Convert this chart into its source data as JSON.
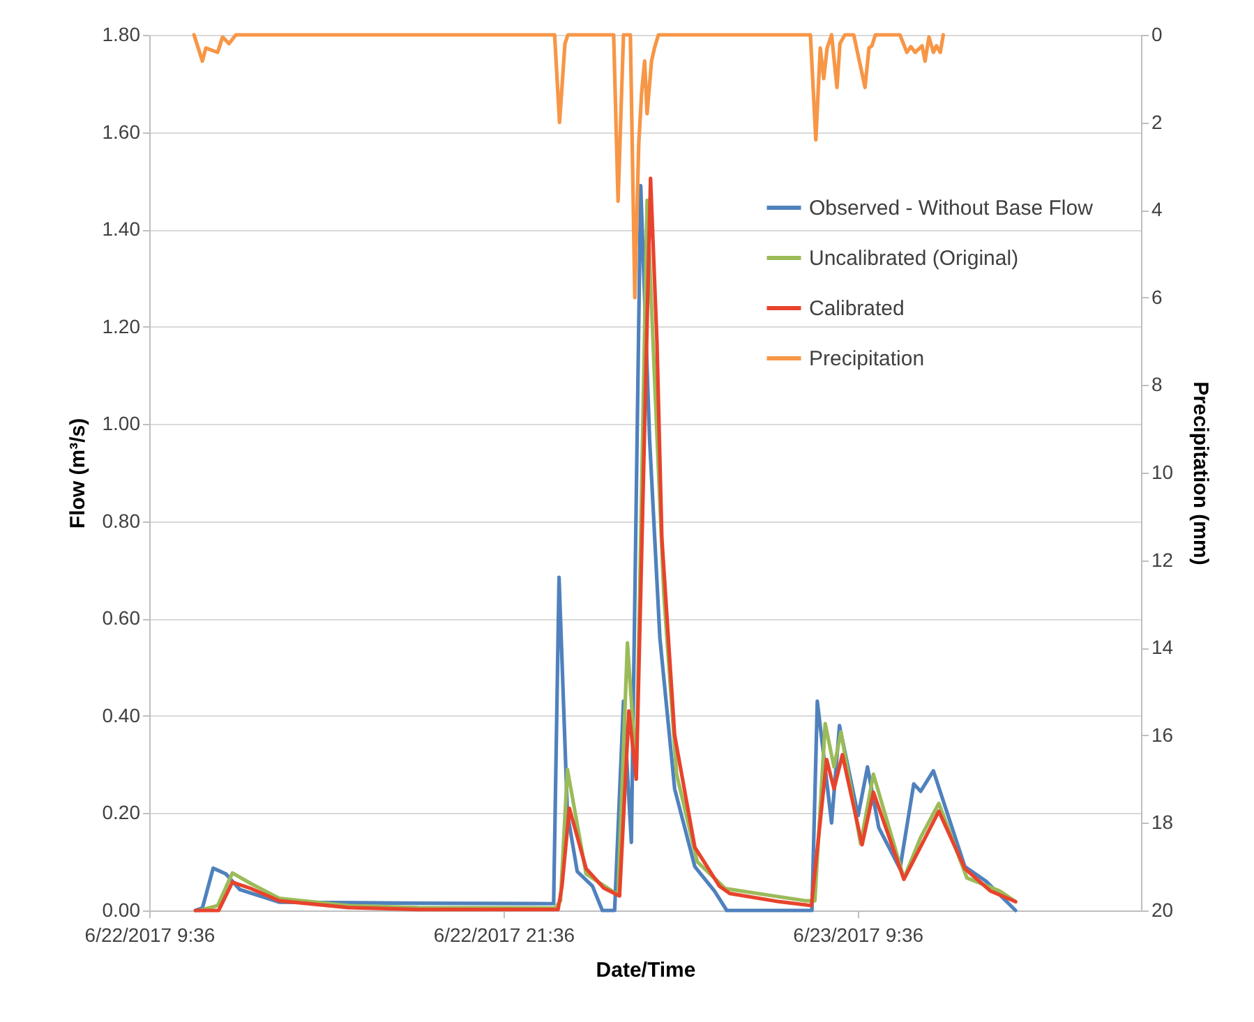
{
  "chart_data": {
    "type": "line",
    "xlabel": "Date/Time",
    "ylabel": "Flow (m³/s)",
    "y2label": "Precipitation (mm)",
    "xlim": [
      "2017-06-22T09:36",
      "2017-06-23T19:12"
    ],
    "xticks": [
      {
        "value": "2017-06-22T09:36",
        "label": "6/22/2017 9:36"
      },
      {
        "value": "2017-06-22T21:36",
        "label": "6/22/2017 21:36"
      },
      {
        "value": "2017-06-23T09:36",
        "label": "6/23/2017 9:36"
      }
    ],
    "ylim": [
      0,
      1.8
    ],
    "yticks": [
      {
        "value": 0,
        "label": "0.00"
      },
      {
        "value": 0.2,
        "label": "0.20"
      },
      {
        "value": 0.4,
        "label": "0.40"
      },
      {
        "value": 0.6,
        "label": "0.60"
      },
      {
        "value": 0.8,
        "label": "0.80"
      },
      {
        "value": 1,
        "label": "1.00"
      },
      {
        "value": 1.2,
        "label": "1.20"
      },
      {
        "value": 1.4,
        "label": "1.40"
      },
      {
        "value": 1.6,
        "label": "1.60"
      },
      {
        "value": 1.8,
        "label": "1.80"
      }
    ],
    "y2lim": [
      20,
      0
    ],
    "y2ticks": [
      0,
      2,
      4,
      6,
      8,
      10,
      12,
      14,
      16,
      18,
      20
    ],
    "grid": "y",
    "legend": "top right",
    "series": [
      {
        "name": "Observed - Without Base Flow",
        "color": "#4f81bd",
        "x": [
          "2017-06-22T11:10",
          "2017-06-22T11:24",
          "2017-06-22T11:46",
          "2017-06-22T12:12",
          "2017-06-22T12:40",
          "2017-06-22T14:00",
          "2017-06-22T18:43",
          "2017-06-22T23:07",
          "2017-06-22T23:18",
          "2017-06-22T23:29",
          "2017-06-22T23:46",
          "2017-06-23T00:06",
          "2017-06-23T00:37",
          "2017-06-23T00:57",
          "2017-06-23T01:22",
          "2017-06-23T01:40",
          "2017-06-23T01:56",
          "2017-06-23T02:15",
          "2017-06-23T02:33",
          "2017-06-23T02:54",
          "2017-06-23T03:24",
          "2017-06-23T04:05",
          "2017-06-23T04:45",
          "2017-06-23T05:10",
          "2017-06-23T07:29",
          "2017-06-23T08:03",
          "2017-06-23T08:14",
          "2017-06-23T08:43",
          "2017-06-23T08:59",
          "2017-06-23T09:37",
          "2017-06-23T09:56",
          "2017-06-23T10:19",
          "2017-06-23T11:02",
          "2017-06-23T11:30",
          "2017-06-23T11:44",
          "2017-06-23T12:10",
          "2017-06-23T12:35",
          "2017-06-23T13:14",
          "2017-06-23T13:57",
          "2017-06-23T14:57"
        ],
        "values": [
          0,
          0.005,
          0.087,
          0.075,
          0.043,
          0.017,
          0.015,
          0.014,
          0.014,
          0.685,
          0.2,
          0.08,
          0.05,
          0,
          0,
          0.43,
          0.14,
          1.49,
          0.97,
          0.56,
          0.25,
          0.09,
          0.04,
          0,
          0,
          0,
          0.43,
          0.18,
          0.38,
          0.195,
          0.295,
          0.17,
          0.086,
          0.26,
          0.245,
          0.287,
          0.21,
          0.09,
          0.06,
          0
        ]
      },
      {
        "name": "Uncalibrated (Original)",
        "color": "#9bbb59",
        "x": [
          "2017-06-22T11:18",
          "2017-06-22T11:55",
          "2017-06-22T12:25",
          "2017-06-22T13:03",
          "2017-06-22T14:00",
          "2017-06-22T16:21",
          "2017-06-22T18:43",
          "2017-06-22T23:21",
          "2017-06-22T23:32",
          "2017-06-22T23:46",
          "2017-06-23T00:24",
          "2017-06-23T01:29",
          "2017-06-23T01:48",
          "2017-06-23T02:06",
          "2017-06-23T02:28",
          "2017-06-23T02:45",
          "2017-06-23T03:02",
          "2017-06-23T03:28",
          "2017-06-23T04:10",
          "2017-06-23T05:07",
          "2017-06-23T07:49",
          "2017-06-23T08:09",
          "2017-06-23T08:30",
          "2017-06-23T08:48",
          "2017-06-23T09:02",
          "2017-06-23T09:42",
          "2017-06-23T10:08",
          "2017-06-23T11:10",
          "2017-06-23T11:44",
          "2017-06-23T12:21",
          "2017-06-23T13:18",
          "2017-06-23T14:25",
          "2017-06-23T14:57"
        ],
        "values": [
          0,
          0.01,
          0.077,
          0.055,
          0.025,
          0.01,
          0.006,
          0.005,
          0.02,
          0.29,
          0.075,
          0.032,
          0.55,
          0.28,
          1.46,
          1.05,
          0.65,
          0.28,
          0.1,
          0.045,
          0.02,
          0.02,
          0.384,
          0.295,
          0.367,
          0.137,
          0.28,
          0.066,
          0.15,
          0.22,
          0.067,
          0.04,
          0.018
        ]
      },
      {
        "name": "Calibrated",
        "color": "#e8432c",
        "x": [
          "2017-06-22T11:10",
          "2017-06-22T11:57",
          "2017-06-22T12:25",
          "2017-06-22T13:03",
          "2017-06-22T14:00",
          "2017-06-22T16:21",
          "2017-06-22T18:43",
          "2017-06-22T23:27",
          "2017-06-22T23:35",
          "2017-06-22T23:50",
          "2017-06-23T00:24",
          "2017-06-23T01:00",
          "2017-06-23T01:32",
          "2017-06-23T01:51",
          "2017-06-23T02:06",
          "2017-06-23T02:35",
          "2017-06-23T02:48",
          "2017-06-23T02:58",
          "2017-06-23T03:24",
          "2017-06-23T04:05",
          "2017-06-23T04:55",
          "2017-06-23T05:16",
          "2017-06-23T06:57",
          "2017-06-23T08:02",
          "2017-06-23T08:33",
          "2017-06-23T08:48",
          "2017-06-23T09:05",
          "2017-06-23T09:45",
          "2017-06-23T10:08",
          "2017-06-23T11:10",
          "2017-06-23T12:21",
          "2017-06-23T13:14",
          "2017-06-23T14:06",
          "2017-06-23T14:57"
        ],
        "values": [
          0,
          0,
          0.058,
          0.045,
          0.02,
          0.006,
          0.002,
          0.002,
          0.05,
          0.21,
          0.086,
          0.046,
          0.03,
          0.41,
          0.27,
          1.505,
          1.17,
          0.765,
          0.36,
          0.13,
          0.05,
          0.035,
          0.018,
          0.01,
          0.31,
          0.25,
          0.32,
          0.135,
          0.243,
          0.064,
          0.204,
          0.086,
          0.04,
          0.018
        ]
      },
      {
        "name": "Precipitation",
        "color": "#f79646",
        "axis": "y2",
        "x": [
          "2017-06-22T11:07",
          "2017-06-22T11:24",
          "2017-06-22T11:31",
          "2017-06-22T11:55",
          "2017-06-22T12:05",
          "2017-06-22T12:18",
          "2017-06-22T12:32",
          "2017-06-22T23:20",
          "2017-06-22T23:30",
          "2017-06-22T23:41",
          "2017-06-22T23:47",
          "2017-06-23T01:20",
          "2017-06-23T01:29",
          "2017-06-23T01:40",
          "2017-06-23T01:54",
          "2017-06-23T02:03",
          "2017-06-23T02:11",
          "2017-06-23T02:17",
          "2017-06-23T02:23",
          "2017-06-23T02:28",
          "2017-06-23T02:37",
          "2017-06-23T02:43",
          "2017-06-23T02:51",
          "2017-06-23T08:00",
          "2017-06-23T08:11",
          "2017-06-23T08:20",
          "2017-06-23T08:27",
          "2017-06-23T08:34",
          "2017-06-23T08:43",
          "2017-06-23T08:54",
          "2017-06-23T09:00",
          "2017-06-23T09:10",
          "2017-06-23T09:28",
          "2017-06-23T09:51",
          "2017-06-23T09:59",
          "2017-06-23T10:05",
          "2017-06-23T10:12",
          "2017-06-23T11:02",
          "2017-06-23T11:16",
          "2017-06-23T11:24",
          "2017-06-23T11:33",
          "2017-06-23T11:47",
          "2017-06-23T11:53",
          "2017-06-23T12:01",
          "2017-06-23T12:10",
          "2017-06-23T12:16",
          "2017-06-23T12:24",
          "2017-06-23T12:30"
        ],
        "values": [
          0,
          0.6,
          0.3,
          0.4,
          0.05,
          0.2,
          0,
          0,
          2,
          0.2,
          0,
          0,
          3.8,
          0,
          0,
          6,
          2.5,
          1.3,
          0.6,
          1.8,
          0.6,
          0.3,
          0,
          0,
          2.4,
          0.3,
          1,
          0.3,
          0,
          1.2,
          0.2,
          0,
          0,
          1.2,
          0.3,
          0.25,
          0,
          0,
          0.4,
          0.27,
          0.4,
          0.25,
          0.6,
          0.05,
          0.4,
          0.25,
          0.4,
          0
        ]
      }
    ]
  }
}
